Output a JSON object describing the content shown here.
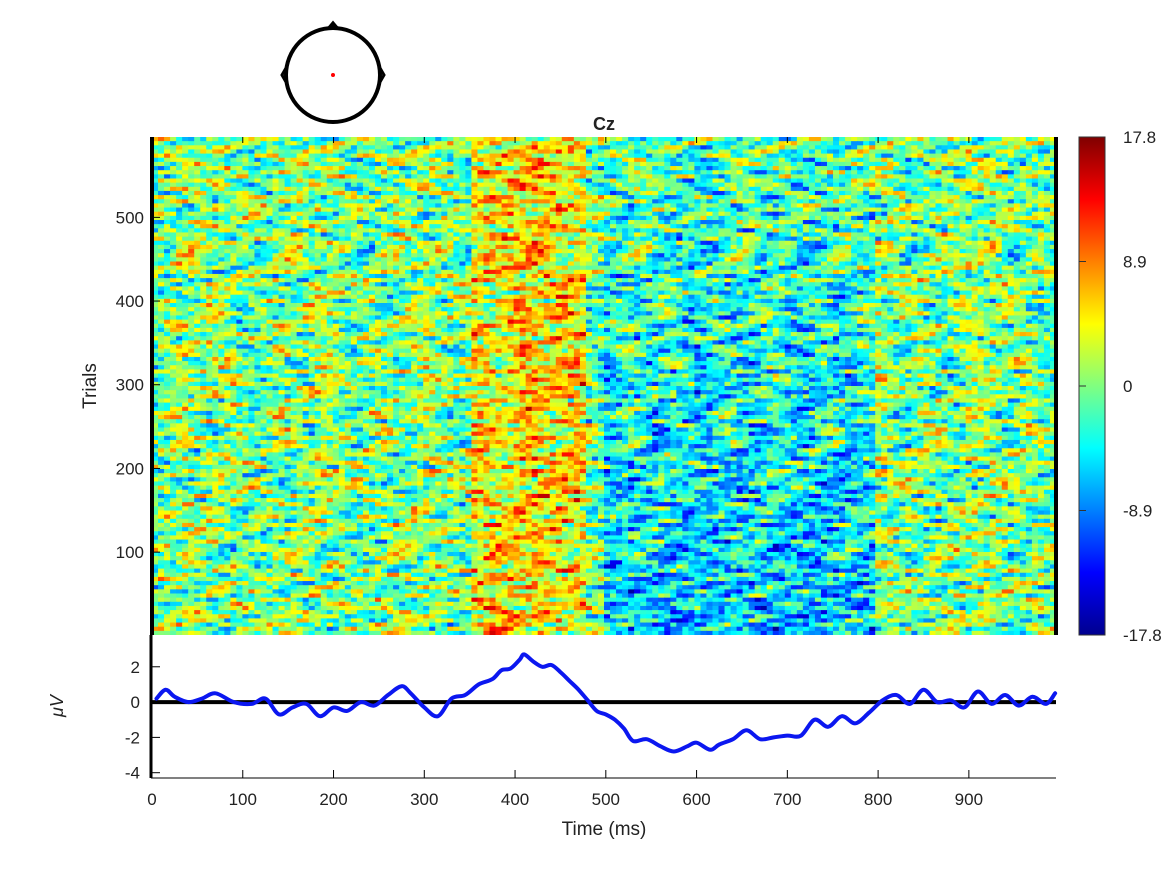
{
  "chart_data": [
    {
      "type": "heatmap",
      "title": "Cz",
      "ylabel": "Trials",
      "xlim": [
        0,
        996
      ],
      "ylim": [
        1,
        596
      ],
      "yticks": [
        100,
        200,
        300,
        400,
        500
      ],
      "colormap": "jet",
      "color_range": [
        -17.8,
        17.8
      ],
      "colorbar": {
        "position": "right",
        "tick_values": [
          17.8,
          8.9,
          0,
          -8.9,
          -17.8
        ],
        "tick_labels": [
          "17.8",
          "8.9",
          "0",
          "-8.9",
          "-17.8"
        ]
      },
      "note": "single-trial ERP image of channel Cz, trials sorted; positive activity around 350-480 ms, negative activity around 500-800 ms in lower trials"
    },
    {
      "type": "line",
      "xlabel": "Time (ms)",
      "ylabel": "μV",
      "xlim": [
        0,
        996
      ],
      "ylim": [
        -4.3,
        3.8
      ],
      "xticks": [
        0,
        100,
        200,
        300,
        400,
        500,
        600,
        700,
        800,
        900
      ],
      "yticks": [
        -4,
        -2,
        0,
        2
      ],
      "grid": false,
      "zero_line": true,
      "series": [
        {
          "color": "#0b17f0",
          "x": [
            5,
            15,
            25,
            40,
            55,
            70,
            90,
            110,
            125,
            140,
            155,
            170,
            185,
            200,
            215,
            230,
            245,
            260,
            275,
            285,
            300,
            315,
            330,
            345,
            360,
            375,
            385,
            395,
            405,
            410,
            420,
            430,
            440,
            450,
            460,
            470,
            480,
            490,
            500,
            510,
            520,
            530,
            545,
            560,
            575,
            590,
            600,
            615,
            625,
            640,
            655,
            670,
            685,
            700,
            715,
            730,
            745,
            760,
            775,
            790,
            805,
            820,
            835,
            850,
            865,
            880,
            895,
            910,
            925,
            940,
            955,
            970,
            985,
            995
          ],
          "y": [
            0.2,
            0.7,
            0.3,
            0.0,
            0.2,
            0.5,
            0.0,
            -0.1,
            0.2,
            -0.7,
            -0.3,
            -0.1,
            -0.8,
            -0.3,
            -0.5,
            0.0,
            -0.2,
            0.4,
            0.9,
            0.5,
            -0.3,
            -0.8,
            0.2,
            0.4,
            1.0,
            1.3,
            1.8,
            1.9,
            2.4,
            2.7,
            2.3,
            2.0,
            2.1,
            1.7,
            1.2,
            0.7,
            0.1,
            -0.5,
            -0.7,
            -1.0,
            -1.5,
            -2.2,
            -2.1,
            -2.5,
            -2.8,
            -2.5,
            -2.3,
            -2.7,
            -2.4,
            -2.1,
            -1.6,
            -2.1,
            -2.0,
            -1.9,
            -1.9,
            -1.0,
            -1.4,
            -0.8,
            -1.2,
            -0.6,
            0.1,
            0.4,
            -0.1,
            0.7,
            0.0,
            0.1,
            -0.3,
            0.6,
            -0.1,
            0.4,
            -0.2,
            0.3,
            -0.1,
            0.5
          ]
        }
      ]
    }
  ],
  "scalp_map": {
    "channel_marker_color": "#ff0000",
    "outline_color": "#000000"
  }
}
